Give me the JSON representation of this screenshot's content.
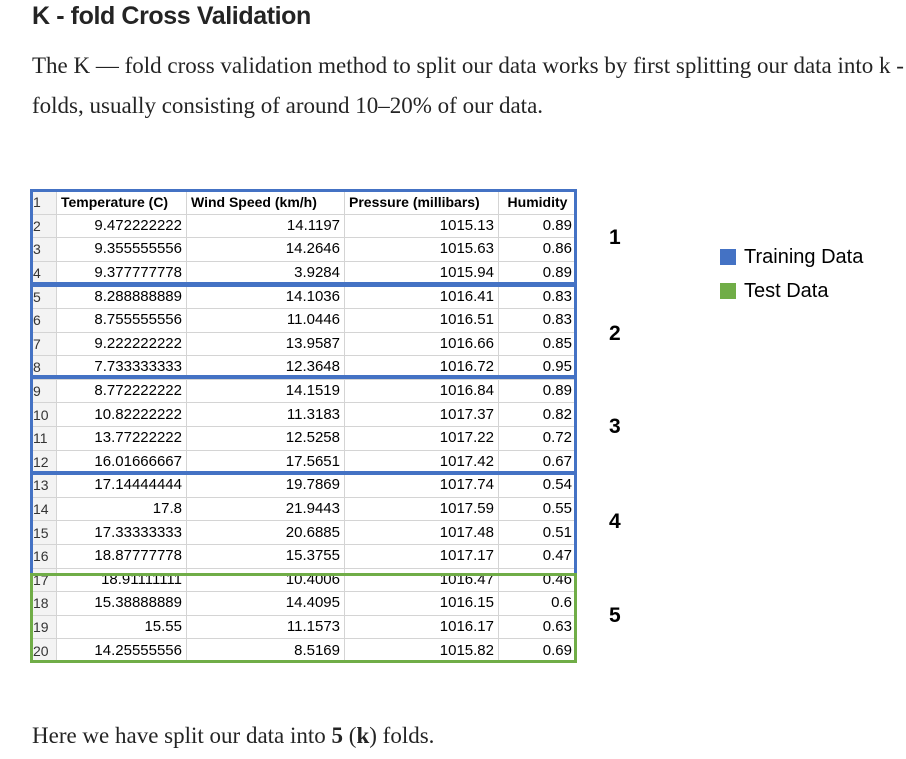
{
  "heading": "K - fold Cross Validation",
  "intro": "The K — fold cross validation method to split our data works by first splitting our data into k - folds, usually consisting of around 10–20% of our data.",
  "outro": {
    "prefix": "Here we have split our data into ",
    "count": "5",
    "mid": " (",
    "k": "k",
    "suffix": ") folds."
  },
  "sheet": {
    "header_row_number": "1",
    "columns": [
      "Temperature (C)",
      "Wind Speed (km/h)",
      "Pressure (millibars)",
      "Humidity"
    ],
    "rows": [
      [
        "2",
        "9.472222222",
        "14.1197",
        "1015.13",
        "0.89"
      ],
      [
        "3",
        "9.355555556",
        "14.2646",
        "1015.63",
        "0.86"
      ],
      [
        "4",
        "9.377777778",
        "3.9284",
        "1015.94",
        "0.89"
      ],
      [
        "5",
        "8.288888889",
        "14.1036",
        "1016.41",
        "0.83"
      ],
      [
        "6",
        "8.755555556",
        "11.0446",
        "1016.51",
        "0.83"
      ],
      [
        "7",
        "9.222222222",
        "13.9587",
        "1016.66",
        "0.85"
      ],
      [
        "8",
        "7.733333333",
        "12.3648",
        "1016.72",
        "0.95"
      ],
      [
        "9",
        "8.772222222",
        "14.1519",
        "1016.84",
        "0.89"
      ],
      [
        "10",
        "10.82222222",
        "11.3183",
        "1017.37",
        "0.82"
      ],
      [
        "11",
        "13.77222222",
        "12.5258",
        "1017.22",
        "0.72"
      ],
      [
        "12",
        "16.01666667",
        "17.5651",
        "1017.42",
        "0.67"
      ],
      [
        "13",
        "17.14444444",
        "19.7869",
        "1017.74",
        "0.54"
      ],
      [
        "14",
        "17.8",
        "21.9443",
        "1017.59",
        "0.55"
      ],
      [
        "15",
        "17.33333333",
        "20.6885",
        "1017.48",
        "0.51"
      ],
      [
        "16",
        "18.87777778",
        "15.3755",
        "1017.17",
        "0.47"
      ],
      [
        "17",
        "18.91111111",
        "10.4006",
        "1016.47",
        "0.46"
      ],
      [
        "18",
        "15.38888889",
        "14.4095",
        "1016.15",
        "0.6"
      ],
      [
        "19",
        "15.55",
        "11.1573",
        "1016.17",
        "0.63"
      ],
      [
        "20",
        "14.25555556",
        "8.5169",
        "1015.82",
        "0.69"
      ]
    ]
  },
  "folds": [
    "1",
    "2",
    "3",
    "4",
    "5"
  ],
  "legend": {
    "training": {
      "label": "Training Data",
      "color": "#4472c4"
    },
    "test": {
      "label": "Test Data",
      "color": "#70ad47"
    }
  }
}
